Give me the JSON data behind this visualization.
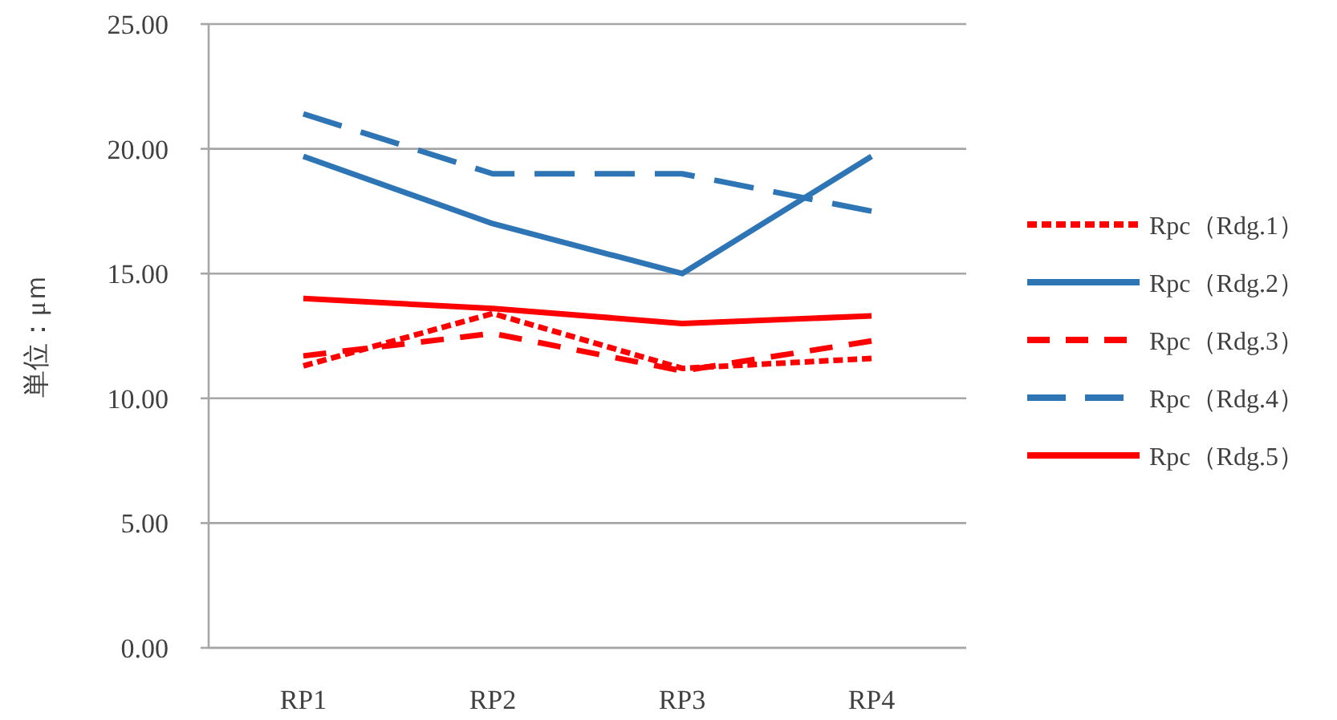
{
  "chart_data": {
    "type": "line",
    "ylabel": "単位：μｍ",
    "categories": [
      "RP1",
      "RP2",
      "RP3",
      "RP4"
    ],
    "series": [
      {
        "name": "Rpc（Rdg.1）",
        "color": "#ff0000",
        "line_style": "dotted",
        "values": [
          11.3,
          13.4,
          11.2,
          11.6
        ]
      },
      {
        "name": "Rpc（Rdg.2）",
        "color": "#2e75b6",
        "line_style": "solid",
        "values": [
          19.7,
          17.0,
          15.0,
          19.7
        ]
      },
      {
        "name": "Rpc（Rdg.3）",
        "color": "#ff0000",
        "line_style": "dashed",
        "values": [
          11.7,
          12.6,
          11.1,
          12.3
        ]
      },
      {
        "name": "Rpc（Rdg.4）",
        "color": "#2e75b6",
        "line_style": "dashed",
        "values": [
          21.4,
          19.0,
          19.0,
          17.5
        ]
      },
      {
        "name": "Rpc（Rdg.5）",
        "color": "#ff0000",
        "line_style": "solid",
        "values": [
          14.0,
          13.6,
          13.0,
          13.3
        ]
      }
    ],
    "ylim": [
      0,
      25
    ],
    "yticks": [
      {
        "value": 0,
        "label": "0.00"
      },
      {
        "value": 5,
        "label": "5.00"
      },
      {
        "value": 10,
        "label": "10.00"
      },
      {
        "value": 15,
        "label": "15.00"
      },
      {
        "value": 20,
        "label": "20.00"
      },
      {
        "value": 25,
        "label": "25.00"
      }
    ],
    "grid": "y",
    "legend": "right"
  }
}
